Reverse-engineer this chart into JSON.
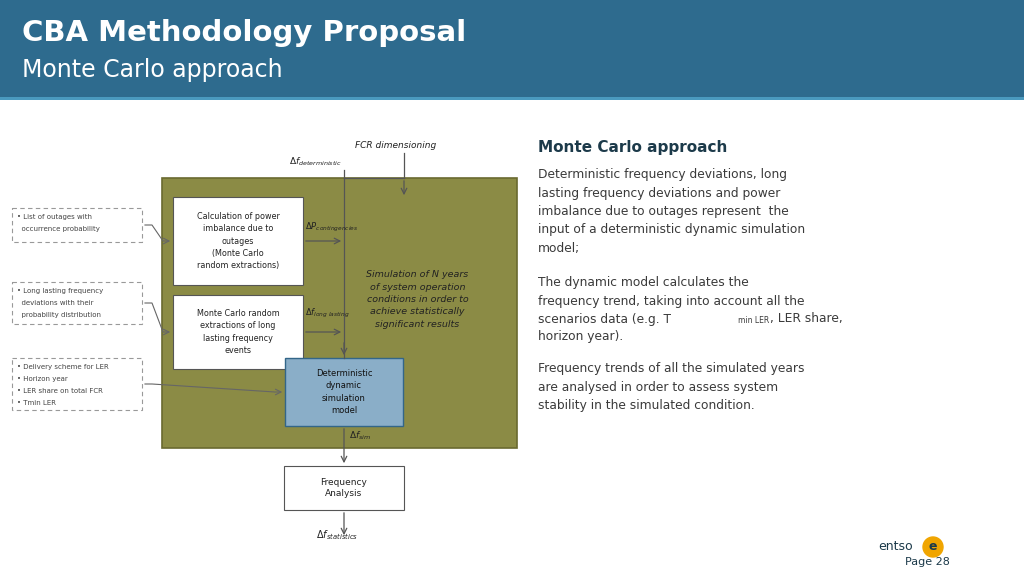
{
  "title_line1": "CBA Methodology Proposal",
  "title_line2": "Monte Carlo approach",
  "header_bg": "#2E6B8E",
  "slide_bg": "#FFFFFF",
  "diagram_bg": "#8B8B45",
  "white_box_bg": "#FFFFFF",
  "blue_box_bg": "#8AAEC8",
  "dashed_box_border": "#999999",
  "arrow_color": "#555555",
  "text_color_dark": "#1C3A4A",
  "text_color_body": "#3A3A3A",
  "right_title": "Monte Carlo approach",
  "right_para1": "Deterministic frequency deviations, long\nlasting frequency deviations and power\nimbalance due to outages represent  the\ninput of a deterministic dynamic simulation\nmodel;",
  "right_para3": "Frequency trends of all the simulated years\nare analysed in order to assess system\nstability in the simulated condition.",
  "page_num": "Page 28",
  "entso_color": "#1C3A4A",
  "entso_circle_color": "#F0A500"
}
